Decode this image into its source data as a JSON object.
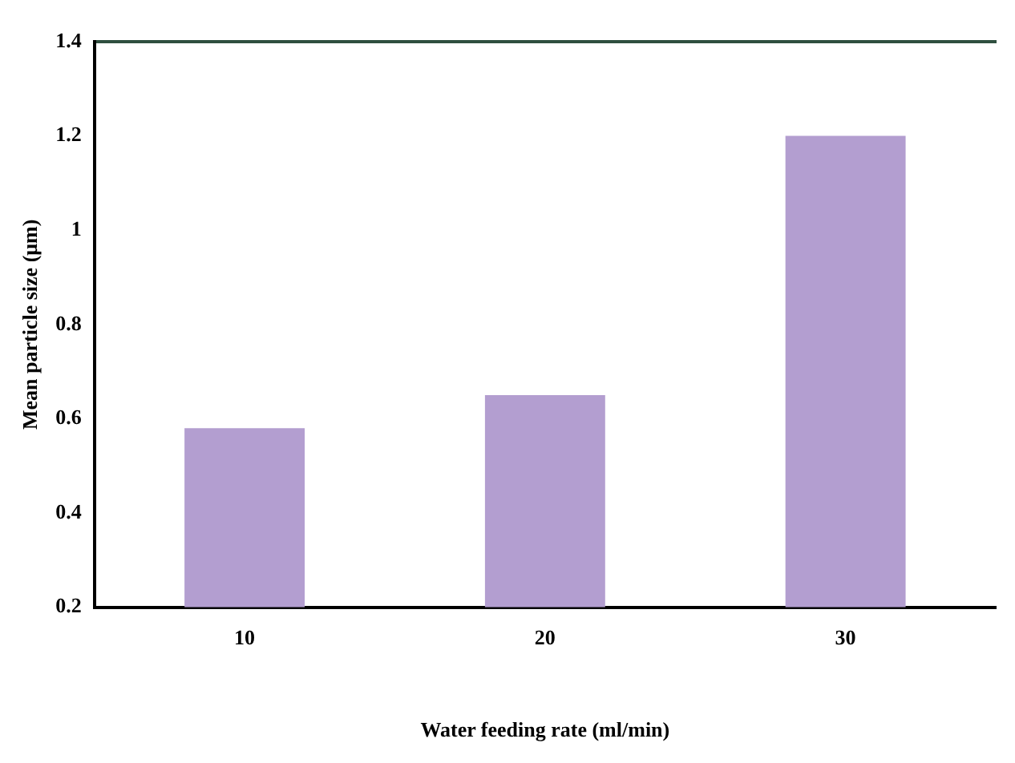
{
  "chart_data": {
    "type": "bar",
    "xlabel": "Water feeding rate (ml/min)",
    "ylabel": "Mean particle size (μm)",
    "categories": [
      "10",
      "20",
      "30"
    ],
    "values": [
      0.58,
      0.65,
      1.2
    ],
    "color": "#b39ed0",
    "ylim": [
      0.2,
      1.4
    ],
    "yticks": [
      0.2,
      0.4,
      0.6,
      0.8,
      1,
      1.2,
      1.4
    ],
    "grid": false,
    "legend": false
  }
}
